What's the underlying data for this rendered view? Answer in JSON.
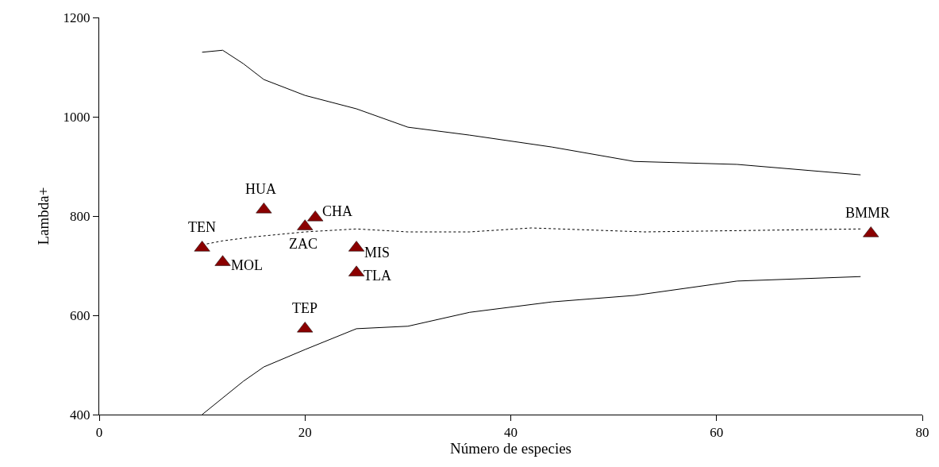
{
  "chart_data": {
    "type": "scatter",
    "xlabel": "Número de especies",
    "ylabel": "Lambda+",
    "xlim": [
      0,
      80
    ],
    "xticks": [
      0,
      20,
      40,
      60,
      80
    ],
    "ylim": [
      400,
      1200
    ],
    "yticks": [
      400,
      600,
      800,
      1000,
      1200
    ],
    "series": [
      {
        "type": "line",
        "color": "#000000",
        "line_style": "solid",
        "marker": "none",
        "x": [
          10,
          12,
          14,
          16,
          20,
          25,
          30,
          36,
          44,
          52,
          62,
          74
        ],
        "values": [
          1130,
          1134,
          1107,
          1075,
          1043,
          1016,
          979,
          963,
          939,
          910,
          904,
          883
        ]
      },
      {
        "type": "line",
        "color": "#000000",
        "line_style": "solid",
        "marker": "none",
        "x": [
          10,
          14,
          16,
          20,
          25,
          30,
          36,
          44,
          52,
          62,
          74
        ],
        "values": [
          400,
          467,
          496,
          531,
          573,
          578,
          606,
          627,
          640,
          669,
          678
        ]
      },
      {
        "type": "line",
        "color": "#000000",
        "line_style": "dotted",
        "marker": "none",
        "x": [
          10,
          12,
          15,
          20,
          25,
          30,
          36,
          42,
          53,
          74
        ],
        "values": [
          742,
          750,
          758,
          768,
          774,
          768,
          768,
          776,
          768,
          774
        ]
      },
      {
        "color": "#8b0000",
        "marker": "triangle",
        "x": [
          10,
          16,
          21,
          20,
          12,
          25,
          25,
          20,
          75
        ],
        "values": [
          736,
          813,
          797,
          779,
          707,
          736,
          686,
          573,
          765
        ]
      }
    ],
    "annotations": [
      {
        "text": "TEN",
        "x": 10,
        "y": 736
      },
      {
        "text": "HUA",
        "x": 16,
        "y": 813
      },
      {
        "text": "CHA",
        "x": 21,
        "y": 797
      },
      {
        "text": "ZAC",
        "x": 20,
        "y": 779
      },
      {
        "text": "MOL",
        "x": 12,
        "y": 707
      },
      {
        "text": "MIS",
        "x": 25,
        "y": 736
      },
      {
        "text": "TLA",
        "x": 25,
        "y": 686
      },
      {
        "text": "TEP",
        "x": 20,
        "y": 573
      },
      {
        "text": "BMMR",
        "x": 75,
        "y": 765
      }
    ]
  }
}
